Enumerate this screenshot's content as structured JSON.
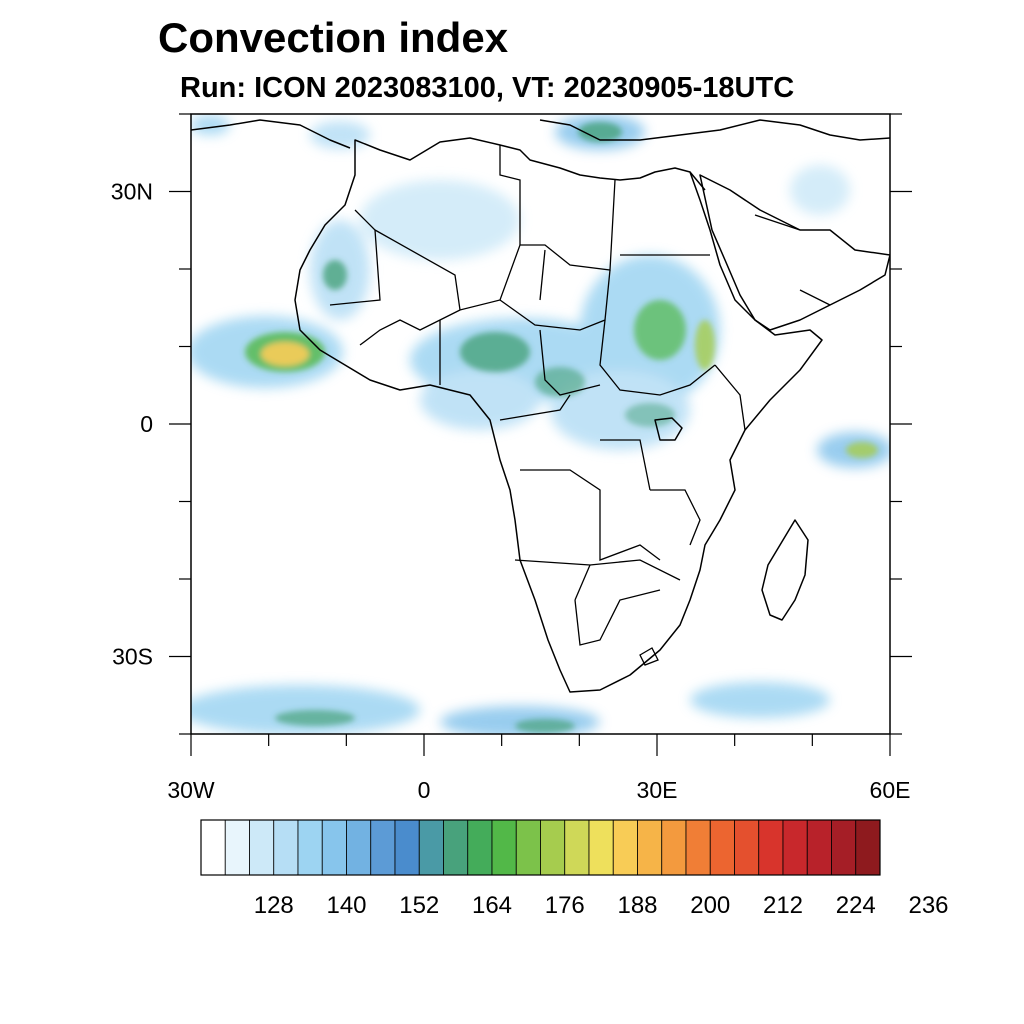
{
  "header": {
    "title": "Convection index",
    "subtitle": "Run: ICON 2023083100,  VT: 20230905-18UTC"
  },
  "map": {
    "lon_range": [
      -30,
      60
    ],
    "lat_range": [
      -40,
      40
    ],
    "lat_ticks": [
      {
        "value": 30,
        "label": "30N"
      },
      {
        "value": 0,
        "label": "0"
      },
      {
        "value": -30,
        "label": "30S"
      }
    ],
    "lon_ticks": [
      {
        "value": -30,
        "label": "30W"
      },
      {
        "value": 0,
        "label": "0"
      },
      {
        "value": 30,
        "label": "30E"
      },
      {
        "value": 60,
        "label": "60E"
      }
    ]
  },
  "colorbar": {
    "colors": [
      "#ffffff",
      "#e8f5fc",
      "#cde9f8",
      "#b6def5",
      "#9dd4f2",
      "#87c5ec",
      "#72b2e2",
      "#5c9bd6",
      "#4a8ccd",
      "#4a9aa6",
      "#48a27c",
      "#44ac5a",
      "#52b848",
      "#7cc24a",
      "#a6cc4e",
      "#cfd858",
      "#eee05c",
      "#f8cc56",
      "#f6b448",
      "#f39a3e",
      "#f07e36",
      "#ec6530",
      "#e4502e",
      "#d8342c",
      "#c8282c",
      "#b8222a",
      "#a51e26",
      "#8e1a1e"
    ],
    "labels": [
      "128",
      "140",
      "152",
      "164",
      "176",
      "188",
      "200",
      "212",
      "224",
      "236"
    ]
  }
}
